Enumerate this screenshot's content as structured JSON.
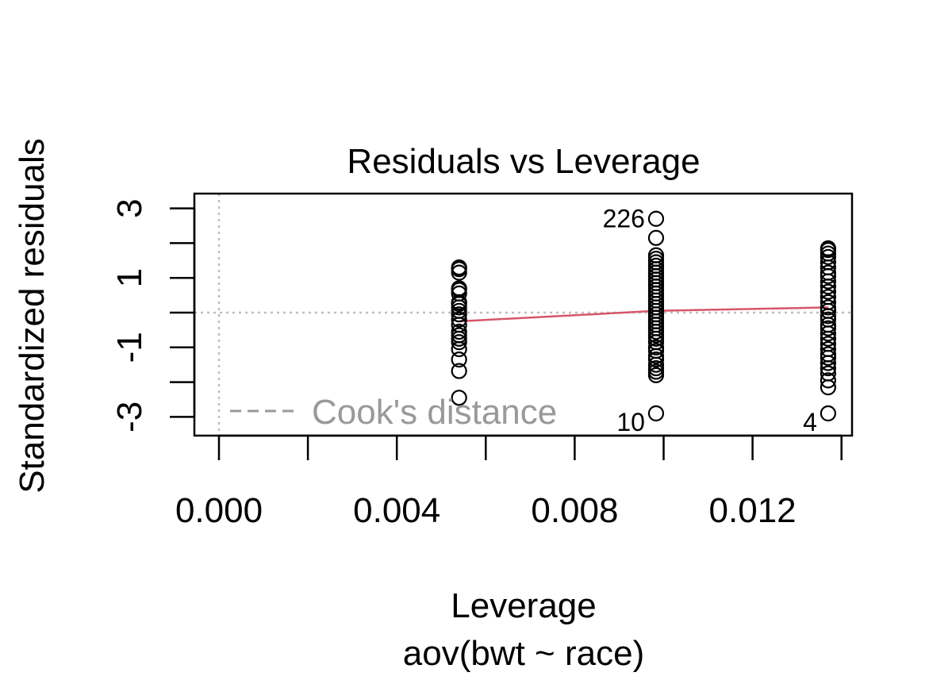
{
  "chart_data": {
    "type": "scatter",
    "title": "Residuals vs Leverage",
    "xlabel": "Leverage",
    "sublabel": "aov(bwt ~ race)",
    "ylabel": "Standardized residuals",
    "xlim": [
      0,
      0.014
    ],
    "ylim": [
      -3.5,
      3.4
    ],
    "x_ticks": [
      0.0,
      0.002,
      0.004,
      0.006,
      0.008,
      0.01,
      0.012,
      0.014
    ],
    "x_tick_labels": [
      "0.000",
      "",
      "0.004",
      "",
      "0.008",
      "",
      "0.012",
      ""
    ],
    "y_ticks": [
      -3,
      -2,
      -1,
      0,
      1,
      2,
      3
    ],
    "y_tick_labels": [
      "-3",
      "",
      "-1",
      "",
      "1",
      "",
      "3"
    ],
    "grid": false,
    "reference_lines": {
      "x": 0,
      "y": 0,
      "style": "dotted",
      "color": "#bebebe"
    },
    "groups": [
      {
        "leverage": 0.0054,
        "residuals": [
          -2.45,
          -1.68,
          -1.35,
          -1.05,
          -0.85,
          -0.75,
          -0.65,
          -0.55,
          -0.35,
          -0.2,
          -0.05,
          0.05,
          0.15,
          0.25,
          0.3,
          0.55,
          0.65,
          0.7,
          1.15,
          1.25,
          1.3
        ]
      },
      {
        "leverage": 0.00983,
        "residuals": [
          -2.9,
          -1.8,
          -1.7,
          -1.6,
          -1.5,
          -1.35,
          -1.25,
          -1.1,
          -1.0,
          -0.85,
          -0.75,
          -0.65,
          -0.55,
          -0.45,
          -0.35,
          -0.25,
          -0.15,
          -0.05,
          0.05,
          0.15,
          0.25,
          0.35,
          0.45,
          0.55,
          0.65,
          0.75,
          0.85,
          0.95,
          1.05,
          1.15,
          1.25,
          1.35,
          1.45,
          1.55,
          1.65,
          2.15,
          2.7
        ]
      },
      {
        "leverage": 0.0137,
        "residuals": [
          -2.9,
          -2.15,
          -1.95,
          -1.75,
          -1.6,
          -1.45,
          -1.3,
          -1.2,
          -1.05,
          -0.9,
          -0.75,
          -0.6,
          -0.45,
          -0.35,
          -0.2,
          -0.1,
          0.05,
          0.15,
          0.3,
          0.45,
          0.6,
          0.75,
          0.9,
          1.05,
          1.15,
          1.3,
          1.45,
          1.6,
          1.7,
          1.8,
          1.85
        ]
      }
    ],
    "point_labels": [
      {
        "text": "226",
        "x": 0.00983,
        "y": 2.7,
        "side": "left"
      },
      {
        "text": "10",
        "x": 0.00983,
        "y": -2.9,
        "side": "left"
      },
      {
        "text": "4",
        "x": 0.0137,
        "y": -2.9,
        "side": "left"
      }
    ],
    "smoother": {
      "color": "#d6566b",
      "x": [
        0.0054,
        0.00983,
        0.0137
      ],
      "y": [
        -0.25,
        0.05,
        0.15
      ]
    },
    "legend": {
      "position": "bottom-left",
      "text": "Cook's distance",
      "line_style": "dashed",
      "color": "#999999"
    }
  }
}
